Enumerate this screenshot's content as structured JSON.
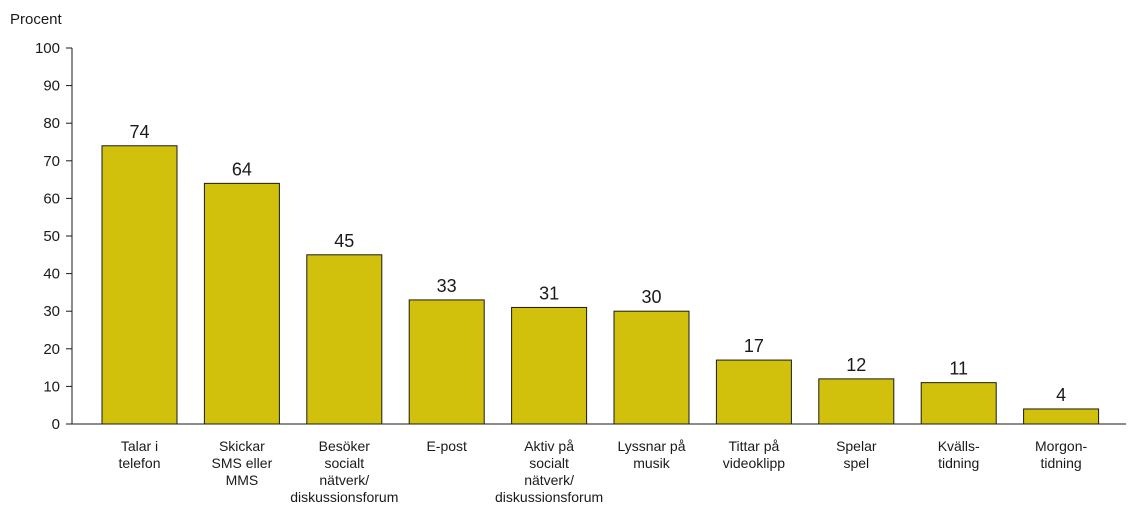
{
  "chart_data": {
    "type": "bar",
    "ylabel": "Procent",
    "ylim": [
      0,
      100
    ],
    "yticks": [
      0,
      10,
      20,
      30,
      40,
      50,
      60,
      70,
      80,
      90,
      100
    ],
    "grid": false,
    "legend": "none",
    "bar_color": "#d1c10c",
    "categories": [
      [
        "Talar i",
        "telefon"
      ],
      [
        "Skickar",
        "SMS eller",
        "MMS"
      ],
      [
        "Besöker",
        "socialt",
        "nätverk/",
        "diskussionsforum"
      ],
      [
        "E-post"
      ],
      [
        "Aktiv på",
        "socialt",
        "nätverk/",
        "diskussionsforum"
      ],
      [
        "Lyssnar på",
        "musik"
      ],
      [
        "Tittar på",
        "videoklipp"
      ],
      [
        "Spelar",
        "spel"
      ],
      [
        "Kvälls-",
        "tidning"
      ],
      [
        "Morgon-",
        "tidning"
      ]
    ],
    "values": [
      74,
      64,
      45,
      33,
      31,
      30,
      17,
      12,
      11,
      4
    ]
  }
}
